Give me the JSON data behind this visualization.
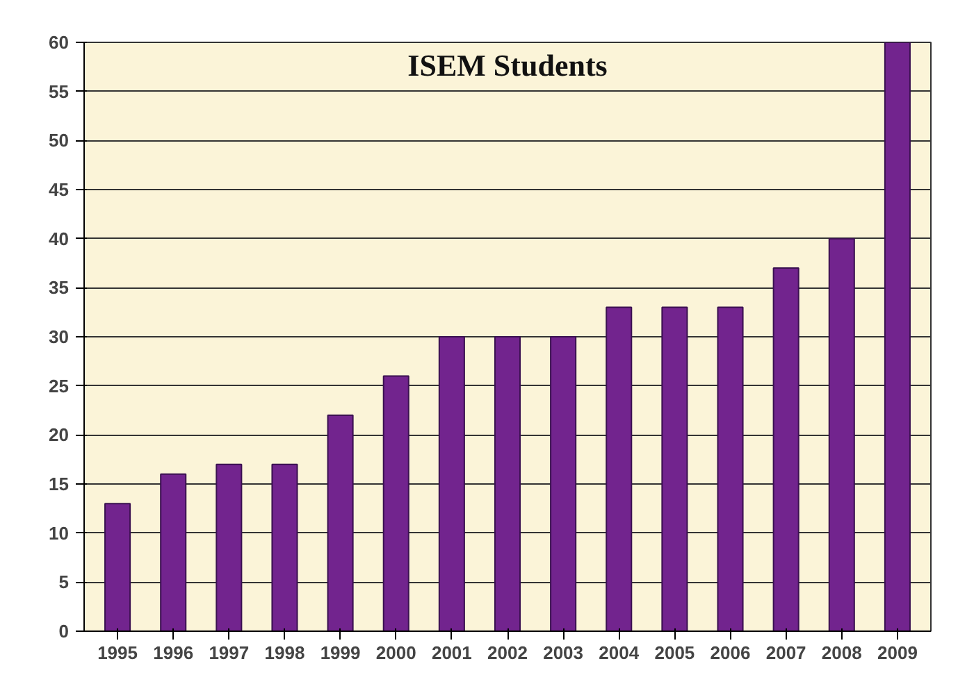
{
  "chart_data": {
    "type": "bar",
    "title": "ISEM Students",
    "categories": [
      "1995",
      "1996",
      "1997",
      "1998",
      "1999",
      "2000",
      "2001",
      "2002",
      "2003",
      "2004",
      "2005",
      "2006",
      "2007",
      "2008",
      "2009"
    ],
    "values": [
      13,
      16,
      17,
      17,
      22,
      26,
      30,
      30,
      30,
      33,
      33,
      33,
      37,
      40,
      60
    ],
    "color": "#72248e",
    "ylim": [
      0,
      60
    ],
    "yticks": [
      0,
      5,
      10,
      15,
      20,
      25,
      30,
      35,
      40,
      45,
      50,
      55,
      60
    ],
    "grid": "y"
  }
}
